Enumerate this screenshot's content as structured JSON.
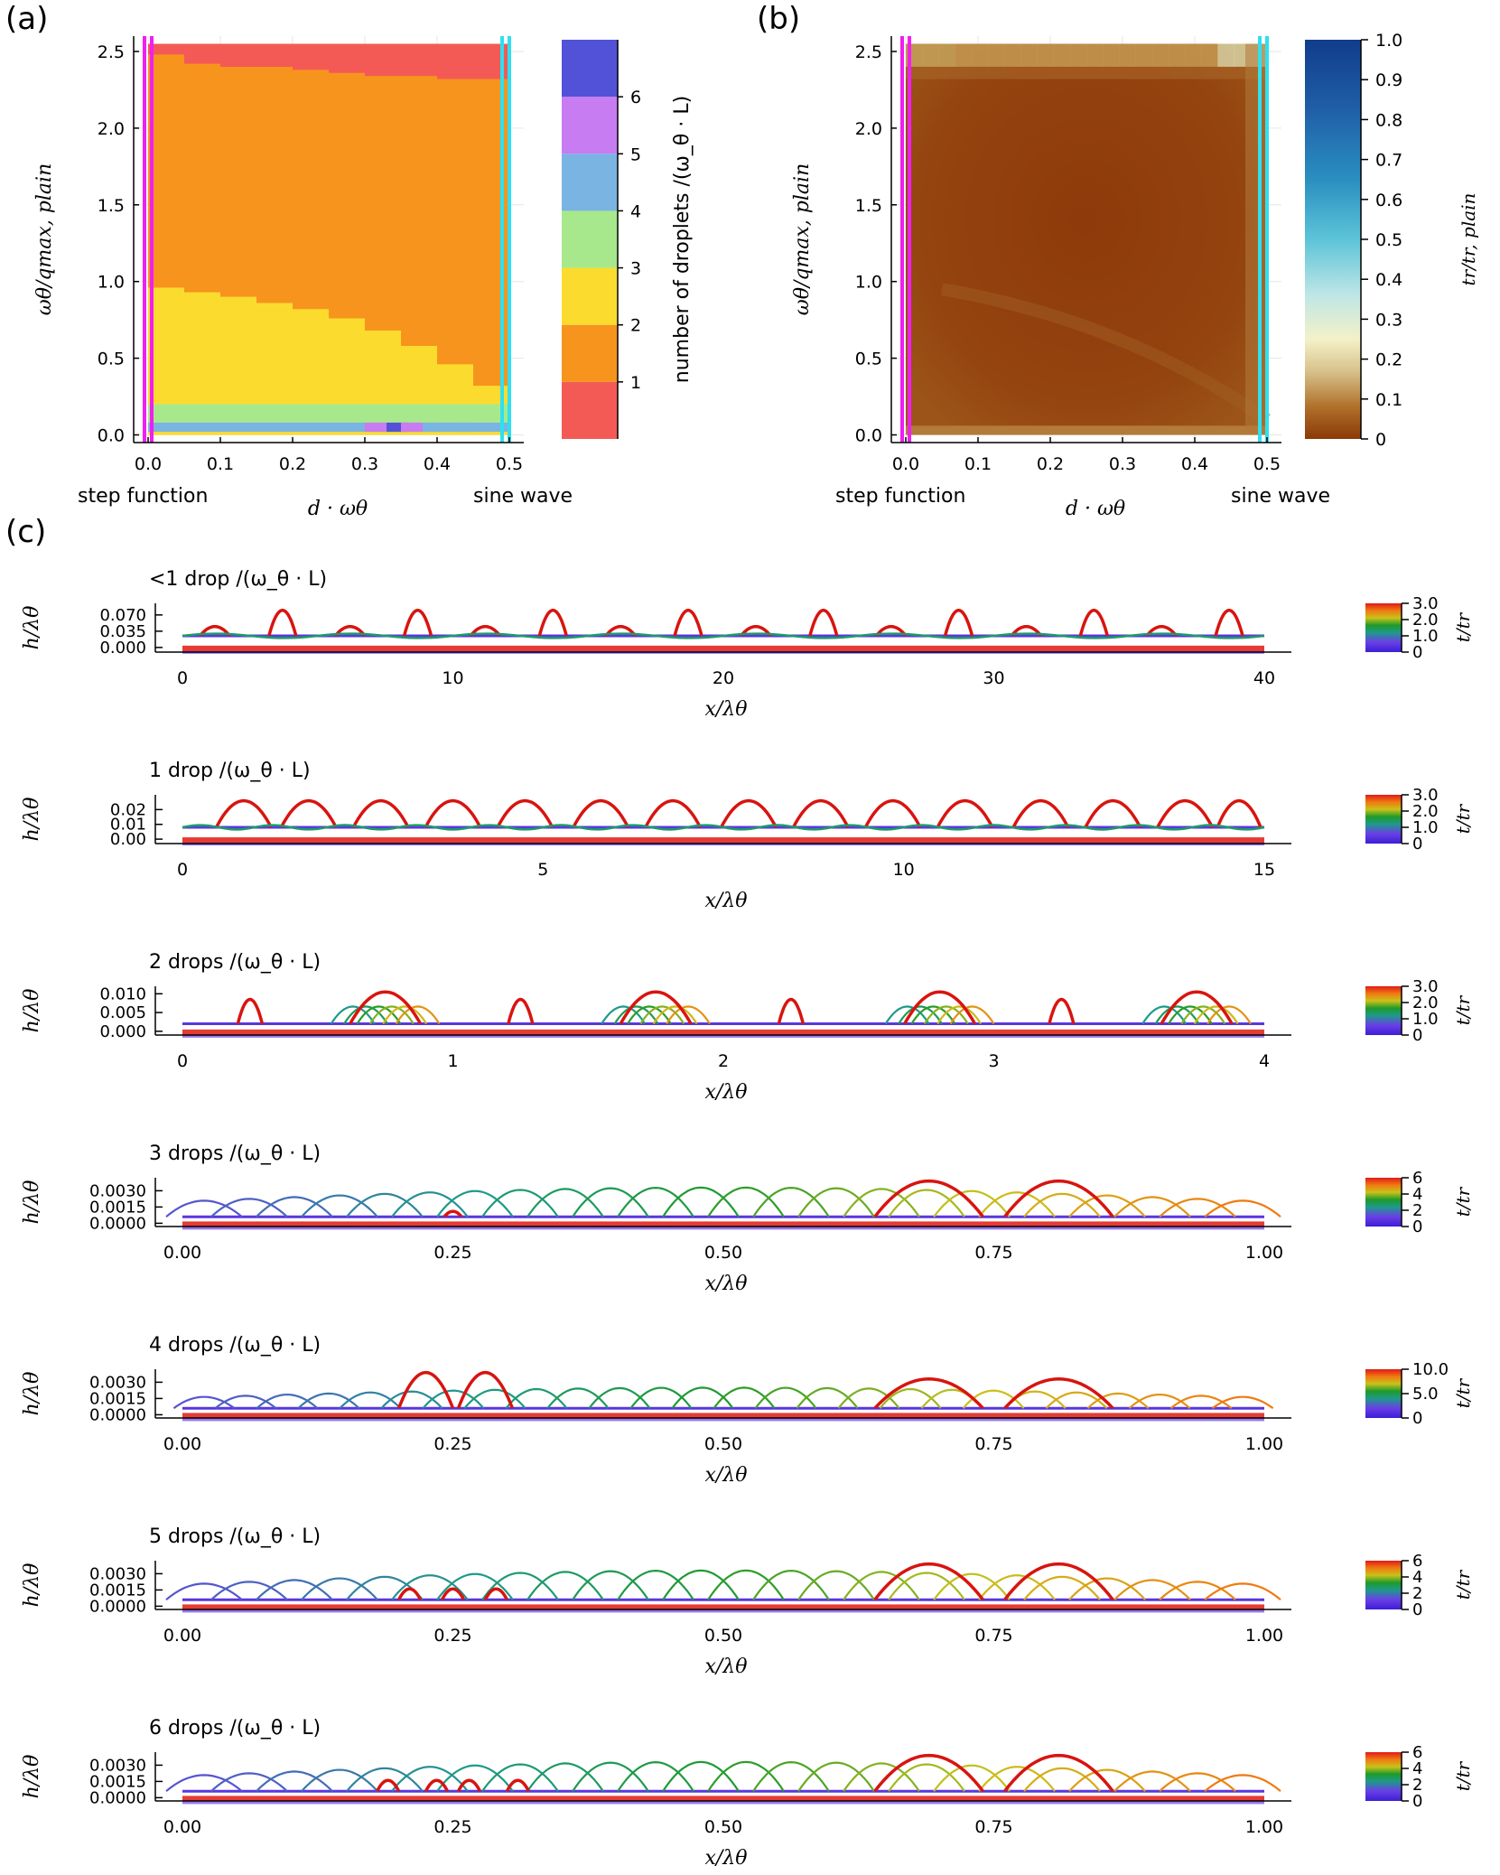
{
  "panel_labels": {
    "a": "(a)",
    "b": "(b)",
    "c": "(c)"
  },
  "colors": {
    "magenta": "#f01ef0",
    "cyan": "#2ee0f0",
    "axis": "#000000",
    "grid": "#e6e6e6"
  },
  "chart_data": [
    {
      "id": "a",
      "type": "heatmap",
      "xlabel": "d · ω_θ",
      "ylabel": "ω_θ / q_max, plain",
      "x_ticks": [
        "0.0",
        "0.1",
        "0.2",
        "0.3",
        "0.4",
        "0.5"
      ],
      "y_ticks": [
        "0.0",
        "0.5",
        "1.0",
        "1.5",
        "2.0",
        "2.5"
      ],
      "xlim": [
        -0.02,
        0.52
      ],
      "ylim": [
        -0.05,
        2.6
      ],
      "x_annotations": {
        "left": "step function",
        "right": "sine wave"
      },
      "vertical_markers": [
        {
          "x": -0.005,
          "color": "#f01ef0"
        },
        {
          "x": 0.005,
          "color": "#f01ef0"
        },
        {
          "x": 0.49,
          "color": "#2ee0f0"
        },
        {
          "x": 0.5,
          "color": "#2ee0f0"
        }
      ],
      "regions": {
        "top_band_lower_edge": [
          2.48,
          2.42,
          2.4,
          2.4,
          2.38,
          2.36,
          2.34,
          2.34,
          2.32,
          2.32,
          2.3
        ],
        "boundary_2_1": [
          0.96,
          0.93,
          0.9,
          0.86,
          0.82,
          0.76,
          0.68,
          0.58,
          0.46,
          0.32,
          0.1
        ],
        "x_nodes": [
          0.0,
          0.05,
          0.1,
          0.15,
          0.2,
          0.25,
          0.3,
          0.35,
          0.4,
          0.45,
          0.5
        ],
        "band_3_upper": 0.2,
        "band_4_upper": 0.08,
        "scatter_cells": [
          {
            "x": 0.3,
            "value": 5
          },
          {
            "x": 0.33,
            "value": 6
          },
          {
            "x": 0.35,
            "value": 5
          },
          {
            "x": 0.38,
            "value": 4
          },
          {
            "x": 0.42,
            "value": 4
          }
        ]
      },
      "colorbar": {
        "label": "number of droplets /(ω_θ · L)",
        "ticks": [
          "1",
          "2",
          "3",
          "4",
          "5",
          "6"
        ],
        "levels": [
          {
            "value": 0,
            "color": "#f45a55"
          },
          {
            "value": 1,
            "color": "#f7941d"
          },
          {
            "value": 2,
            "color": "#fbdc2e"
          },
          {
            "value": 3,
            "color": "#a8e88c"
          },
          {
            "value": 4,
            "color": "#7ab4e2"
          },
          {
            "value": 5,
            "color": "#c77cf1"
          },
          {
            "value": 6,
            "color": "#5252d8"
          }
        ]
      }
    },
    {
      "id": "b",
      "type": "heatmap",
      "xlabel": "d · ω_θ",
      "ylabel": "ω_θ / q_max, plain",
      "x_ticks": [
        "0.0",
        "0.1",
        "0.2",
        "0.3",
        "0.4",
        "0.5"
      ],
      "y_ticks": [
        "0.0",
        "0.5",
        "1.0",
        "1.5",
        "2.0",
        "2.5"
      ],
      "xlim": [
        -0.02,
        0.52
      ],
      "ylim": [
        -0.05,
        2.6
      ],
      "x_annotations": {
        "left": "step function",
        "right": "sine wave"
      },
      "vertical_markers": [
        {
          "x": -0.005,
          "color": "#f01ef0"
        },
        {
          "x": 0.005,
          "color": "#f01ef0"
        },
        {
          "x": 0.49,
          "color": "#2ee0f0"
        },
        {
          "x": 0.5,
          "color": "#2ee0f0"
        }
      ],
      "field_description_values": {
        "bulk": 0.02,
        "top_band": 0.15,
        "right_edge": 0.3
      },
      "colorbar": {
        "label": "t_r / t_r, plain",
        "ticks": [
          "0",
          "0.1",
          "0.2",
          "0.3",
          "0.4",
          "0.5",
          "0.6",
          "0.7",
          "0.8",
          "0.9",
          "1.0"
        ],
        "range": [
          0,
          1.0
        ],
        "stops": [
          "#8a3a06",
          "#b0702a",
          "#d8c28c",
          "#f4f1c8",
          "#bfe6e6",
          "#5cc4d8",
          "#2a8fc0",
          "#2060a8",
          "#103c8c"
        ]
      }
    },
    {
      "id": "c1",
      "type": "line",
      "title": "<1 drop /(ω_θ · L)",
      "xlabel": "x/λ_θ",
      "ylabel": "h/λ_θ",
      "cbar_label": "t/t_r",
      "x_ticks": [
        "0",
        "10",
        "20",
        "30",
        "40"
      ],
      "xlim": [
        0,
        40
      ],
      "y_ticks": [
        "0.000",
        "0.035",
        "0.070"
      ],
      "ylim": [
        -0.01,
        0.095
      ],
      "cbar_ticks": [
        "0",
        "1.0",
        "2.0",
        "3.0"
      ],
      "cbar_max": 3.0,
      "baseline": 0.025,
      "drops": [
        {
          "center": 1.2,
          "height": 0.045,
          "half_width": 0.55
        },
        {
          "center": 3.7,
          "height": 0.08,
          "half_width": 0.5
        },
        {
          "center": 6.2,
          "height": 0.045,
          "half_width": 0.55
        },
        {
          "center": 8.7,
          "height": 0.08,
          "half_width": 0.5
        },
        {
          "center": 11.2,
          "height": 0.045,
          "half_width": 0.55
        },
        {
          "center": 13.7,
          "height": 0.08,
          "half_width": 0.5
        },
        {
          "center": 16.2,
          "height": 0.045,
          "half_width": 0.55
        },
        {
          "center": 18.7,
          "height": 0.08,
          "half_width": 0.5
        },
        {
          "center": 21.2,
          "height": 0.045,
          "half_width": 0.55
        },
        {
          "center": 23.7,
          "height": 0.08,
          "half_width": 0.5
        },
        {
          "center": 26.2,
          "height": 0.045,
          "half_width": 0.55
        },
        {
          "center": 28.7,
          "height": 0.08,
          "half_width": 0.5
        },
        {
          "center": 31.2,
          "height": 0.045,
          "half_width": 0.55
        },
        {
          "center": 33.7,
          "height": 0.08,
          "half_width": 0.5
        },
        {
          "center": 36.2,
          "height": 0.045,
          "half_width": 0.55
        },
        {
          "center": 38.7,
          "height": 0.08,
          "half_width": 0.5
        }
      ]
    },
    {
      "id": "c2",
      "type": "line",
      "title": "1 drop /(ω_θ · L)",
      "xlabel": "x/λ_θ",
      "ylabel": "h/λ_θ",
      "cbar_label": "t/t_r",
      "x_ticks": [
        "0",
        "5",
        "10",
        "15"
      ],
      "xlim": [
        0,
        15
      ],
      "y_ticks": [
        "0.00",
        "0.01",
        "0.02"
      ],
      "ylim": [
        -0.003,
        0.03
      ],
      "cbar_ticks": [
        "0",
        "1.0",
        "2.0",
        "3.0"
      ],
      "cbar_max": 3.0,
      "baseline": 0.008,
      "drops": [
        {
          "center": 0.85,
          "height": 0.026,
          "half_width": 0.38
        },
        {
          "center": 1.75,
          "height": 0.026,
          "half_width": 0.38
        },
        {
          "center": 2.75,
          "height": 0.026,
          "half_width": 0.38
        },
        {
          "center": 3.75,
          "height": 0.026,
          "half_width": 0.38
        },
        {
          "center": 4.75,
          "height": 0.026,
          "half_width": 0.38
        },
        {
          "center": 5.8,
          "height": 0.026,
          "half_width": 0.38
        },
        {
          "center": 6.8,
          "height": 0.026,
          "half_width": 0.38
        },
        {
          "center": 7.85,
          "height": 0.026,
          "half_width": 0.38
        },
        {
          "center": 8.85,
          "height": 0.026,
          "half_width": 0.38
        },
        {
          "center": 9.85,
          "height": 0.026,
          "half_width": 0.38
        },
        {
          "center": 10.85,
          "height": 0.026,
          "half_width": 0.38
        },
        {
          "center": 11.9,
          "height": 0.026,
          "half_width": 0.38
        },
        {
          "center": 12.9,
          "height": 0.026,
          "half_width": 0.38
        },
        {
          "center": 13.9,
          "height": 0.026,
          "half_width": 0.38
        },
        {
          "center": 14.65,
          "height": 0.026,
          "half_width": 0.3
        }
      ]
    },
    {
      "id": "c3",
      "type": "line",
      "title": "2 drops /(ω_θ · L)",
      "xlabel": "x/λ_θ",
      "ylabel": "h/λ_θ",
      "cbar_label": "t/t_r",
      "x_ticks": [
        "0",
        "1",
        "2",
        "3",
        "4"
      ],
      "xlim": [
        0,
        4
      ],
      "y_ticks": [
        "0.000",
        "0.005",
        "0.010"
      ],
      "ylim": [
        -0.001,
        0.012
      ],
      "cbar_ticks": [
        "0",
        "1.0",
        "2.0",
        "3.0"
      ],
      "cbar_max": 3.0,
      "baseline": 0.002,
      "drops": [
        {
          "center": 0.25,
          "height": 0.0085,
          "half_width": 0.045
        },
        {
          "center": 0.75,
          "height": 0.0105,
          "half_width": 0.13
        },
        {
          "center": 1.25,
          "height": 0.0085,
          "half_width": 0.045
        },
        {
          "center": 1.75,
          "height": 0.0105,
          "half_width": 0.13
        },
        {
          "center": 2.25,
          "height": 0.0085,
          "half_width": 0.045
        },
        {
          "center": 2.8,
          "height": 0.0105,
          "half_width": 0.13
        },
        {
          "center": 3.25,
          "height": 0.0085,
          "half_width": 0.045
        },
        {
          "center": 3.75,
          "height": 0.0105,
          "half_width": 0.13
        }
      ],
      "fan": [
        {
          "center": 0.75,
          "spread": 0.2
        },
        {
          "center": 1.75,
          "spread": 0.2
        },
        {
          "center": 2.8,
          "spread": 0.2
        },
        {
          "center": 3.75,
          "spread": 0.2
        }
      ]
    },
    {
      "id": "c4",
      "type": "line",
      "title": "3 drops /(ω_θ · L)",
      "xlabel": "x/λ_θ",
      "ylabel": "h/λ_θ",
      "cbar_label": "t/t_r",
      "x_ticks": [
        "0.00",
        "0.25",
        "0.50",
        "0.75",
        "1.00"
      ],
      "xlim": [
        0,
        1
      ],
      "y_ticks": [
        "0.0000",
        "0.0015",
        "0.0030"
      ],
      "ylim": [
        -0.0003,
        0.0042
      ],
      "cbar_ticks": [
        "0",
        "2",
        "4",
        "6"
      ],
      "cbar_max": 6,
      "baseline": 0.0006,
      "drops": [
        {
          "center": 0.25,
          "height": 0.0011,
          "half_width": 0.008
        },
        {
          "center": 0.69,
          "height": 0.0039,
          "half_width": 0.05
        },
        {
          "center": 0.81,
          "height": 0.0039,
          "half_width": 0.05
        }
      ],
      "sweep": {
        "from": 0.0,
        "to": 1.0,
        "count": 24,
        "height": 0.0033,
        "half_width": 0.035
      }
    },
    {
      "id": "c5",
      "type": "line",
      "title": "4 drops /(ω_θ · L)",
      "xlabel": "x/λ_θ",
      "ylabel": "h/λ_θ",
      "cbar_label": "t/t_r",
      "x_ticks": [
        "0.00",
        "0.25",
        "0.50",
        "0.75",
        "1.00"
      ],
      "xlim": [
        0,
        1
      ],
      "y_ticks": [
        "0.0000",
        "0.0015",
        "0.0030"
      ],
      "ylim": [
        -0.0003,
        0.0042
      ],
      "cbar_ticks": [
        "0",
        "5.0",
        "10.0"
      ],
      "cbar_max": 10.0,
      "baseline": 0.0006,
      "drops": [
        {
          "center": 0.225,
          "height": 0.0039,
          "half_width": 0.025
        },
        {
          "center": 0.28,
          "height": 0.0039,
          "half_width": 0.025
        },
        {
          "center": 0.69,
          "height": 0.0033,
          "half_width": 0.05
        },
        {
          "center": 0.81,
          "height": 0.0033,
          "half_width": 0.05
        }
      ],
      "sweep": {
        "from": 0.0,
        "to": 1.0,
        "count": 26,
        "height": 0.0025,
        "half_width": 0.028
      }
    },
    {
      "id": "c6",
      "type": "line",
      "title": "5 drops /(ω_θ · L)",
      "xlabel": "x/λ_θ",
      "ylabel": "h/λ_θ",
      "cbar_label": "t/t_r",
      "x_ticks": [
        "0.00",
        "0.25",
        "0.50",
        "0.75",
        "1.00"
      ],
      "xlim": [
        0,
        1
      ],
      "y_ticks": [
        "0.0000",
        "0.0015",
        "0.0030"
      ],
      "ylim": [
        -0.0003,
        0.0042
      ],
      "cbar_ticks": [
        "0",
        "2",
        "4",
        "6"
      ],
      "cbar_max": 6,
      "baseline": 0.0006,
      "drops": [
        {
          "center": 0.21,
          "height": 0.0016,
          "half_width": 0.01
        },
        {
          "center": 0.25,
          "height": 0.0016,
          "half_width": 0.01
        },
        {
          "center": 0.29,
          "height": 0.0016,
          "half_width": 0.01
        },
        {
          "center": 0.69,
          "height": 0.0039,
          "half_width": 0.05
        },
        {
          "center": 0.81,
          "height": 0.0039,
          "half_width": 0.05
        }
      ],
      "sweep": {
        "from": 0.0,
        "to": 1.0,
        "count": 24,
        "height": 0.0033,
        "half_width": 0.035
      }
    },
    {
      "id": "c7",
      "type": "line",
      "title": "6 drops /(ω_θ · L)",
      "xlabel": "x/λ_θ",
      "ylabel": "h/λ_θ",
      "cbar_label": "t/t_r",
      "x_ticks": [
        "0.00",
        "0.25",
        "0.50",
        "0.75",
        "1.00"
      ],
      "xlim": [
        0,
        1
      ],
      "y_ticks": [
        "0.0000",
        "0.0015",
        "0.0030"
      ],
      "ylim": [
        -0.0003,
        0.0042
      ],
      "cbar_ticks": [
        "0",
        "2",
        "4",
        "6"
      ],
      "cbar_max": 6,
      "baseline": 0.0006,
      "drops": [
        {
          "center": 0.19,
          "height": 0.0016,
          "half_width": 0.01
        },
        {
          "center": 0.235,
          "height": 0.0016,
          "half_width": 0.01
        },
        {
          "center": 0.265,
          "height": 0.0016,
          "half_width": 0.01
        },
        {
          "center": 0.31,
          "height": 0.0016,
          "half_width": 0.01
        },
        {
          "center": 0.69,
          "height": 0.0039,
          "half_width": 0.05
        },
        {
          "center": 0.81,
          "height": 0.0039,
          "half_width": 0.05
        }
      ],
      "sweep": {
        "from": 0.0,
        "to": 1.0,
        "count": 24,
        "height": 0.0033,
        "half_width": 0.035
      }
    }
  ]
}
